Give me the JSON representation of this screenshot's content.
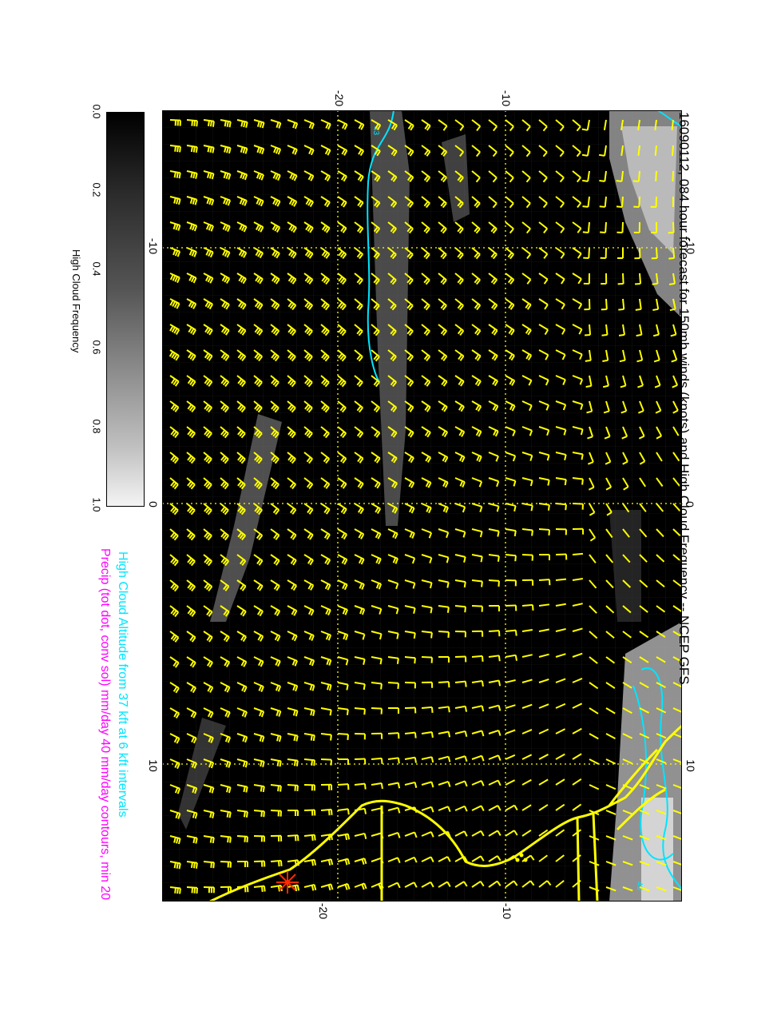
{
  "title": "16090112, 084 hour forecast for 150mb winds (knots) and High Cloud Frequency -- NCEP GFS",
  "legend": {
    "line1": "High Cloud Altitude from 37 kft at 6 kft intervals",
    "line2": "Precip (tot dot, conv sol) mm/day 40 mm/day contours, min 20"
  },
  "colorbar": {
    "label": "High Cloud Frequency",
    "ticks": [
      "0.0",
      "0.2",
      "0.4",
      "0.6",
      "0.8",
      "1.0"
    ]
  },
  "axes": {
    "top_ticks": [
      "-20",
      "-10"
    ],
    "bottom_ticks": [
      "-20",
      "-10"
    ],
    "right_ticks": [
      "-10",
      "0",
      "10"
    ],
    "left_ticks": [
      "-10",
      "0",
      "10"
    ]
  },
  "contour_labels": [
    "43",
    "49"
  ],
  "colors": {
    "wind_barbs": "#ffff00",
    "coastline": "#ffff00",
    "cloud_altitude_contour": "#00e5ff",
    "precip_text": "#ff00ff",
    "background_field": "#000000"
  },
  "barb_icon": "wind-barb-icon",
  "marker_icon": "red-star-marker-icon"
}
